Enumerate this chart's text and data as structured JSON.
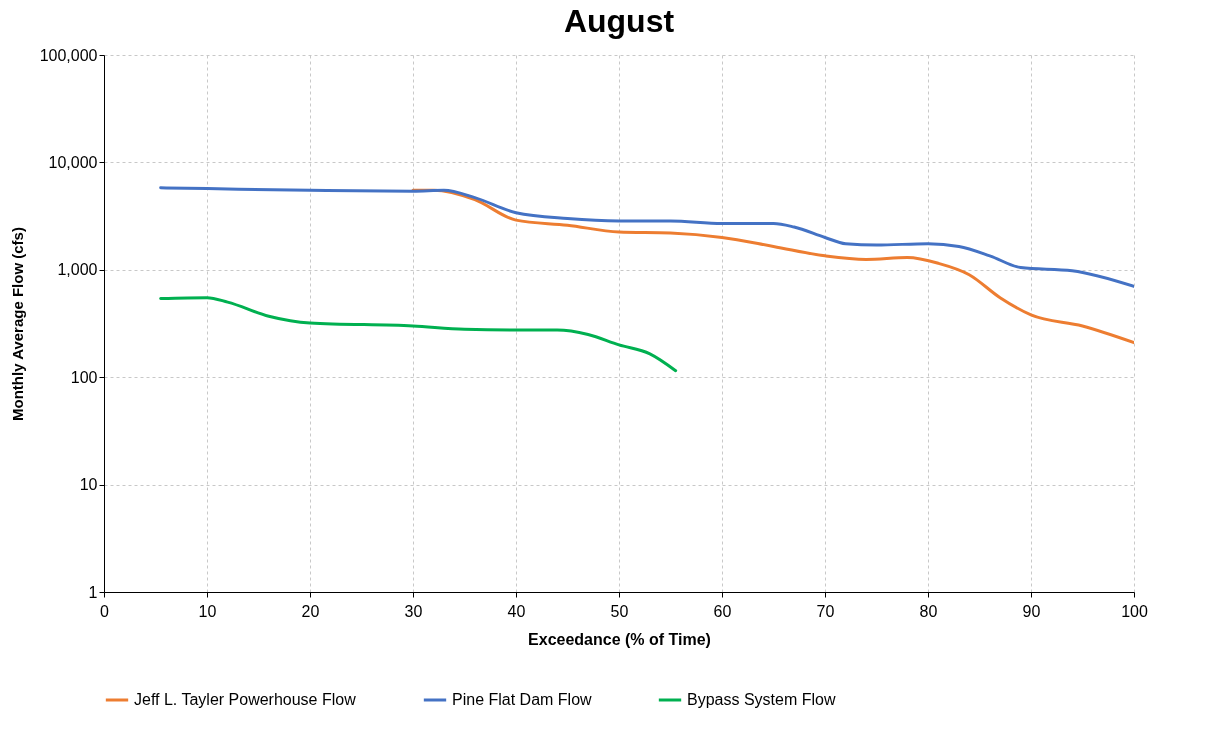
{
  "chart_data": {
    "type": "line",
    "title": "August",
    "xlabel": "Exceedance (% of Time)",
    "ylabel": "Monthly Average Flow (cfs)",
    "xlim": [
      0,
      100
    ],
    "xticks": [
      0,
      10,
      20,
      30,
      40,
      50,
      60,
      70,
      80,
      90,
      100
    ],
    "ylim": [
      1,
      100000
    ],
    "yticks": [
      {
        "value": 1,
        "label": "1"
      },
      {
        "value": 10,
        "label": "10"
      },
      {
        "value": 100,
        "label": "100"
      },
      {
        "value": 1000,
        "label": "1,000"
      },
      {
        "value": 10000,
        "label": "10,000"
      },
      {
        "value": 100000,
        "label": "100,000"
      }
    ],
    "log": "y",
    "grid": true,
    "legend": "bottom",
    "marker": "none",
    "line_style": "solid",
    "series": [
      {
        "name": "Jeff L. Tayler Powerhouse Flow",
        "color": "#ed7d31",
        "x": [
          30,
          32,
          36,
          40,
          45,
          50,
          55,
          60,
          65,
          70,
          74,
          78,
          81,
          84,
          87,
          90,
          95,
          100
        ],
        "values": [
          5500,
          5500,
          4500,
          2900,
          2600,
          2250,
          2200,
          2000,
          1650,
          1350,
          1250,
          1300,
          1150,
          900,
          550,
          380,
          300,
          210
        ]
      },
      {
        "name": "Pine Flat Dam Flow",
        "color": "#4472c4",
        "x": [
          5.5,
          10,
          20,
          30,
          33,
          36,
          40,
          45,
          50,
          55,
          60,
          65,
          67,
          70,
          72,
          75,
          80,
          83,
          86,
          89,
          94,
          100
        ],
        "values": [
          5800,
          5700,
          5500,
          5400,
          5500,
          4700,
          3400,
          3000,
          2850,
          2850,
          2700,
          2700,
          2500,
          2000,
          1750,
          1700,
          1750,
          1650,
          1350,
          1050,
          980,
          700
        ]
      },
      {
        "name": "Bypass System Flow",
        "color": "#00b050",
        "x": [
          5.5,
          10,
          12,
          16,
          20,
          30,
          35,
          40,
          44,
          47,
          50,
          53,
          55.5
        ],
        "values": [
          540,
          550,
          500,
          370,
          320,
          300,
          280,
          275,
          275,
          250,
          200,
          165,
          115
        ]
      }
    ]
  }
}
